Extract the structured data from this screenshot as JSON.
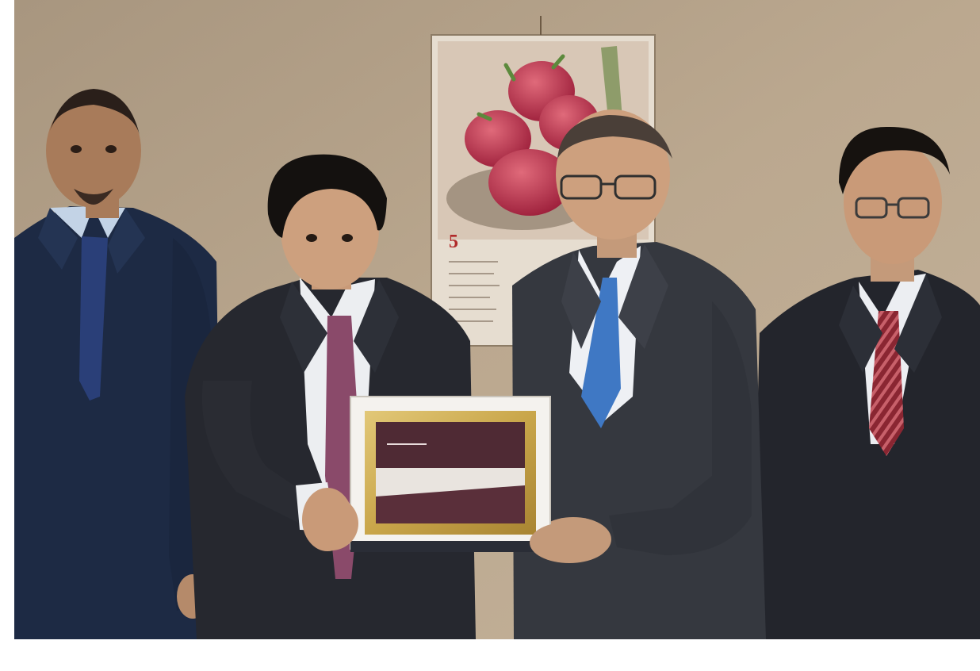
{
  "photo": {
    "calendar_number": "5",
    "colors": {
      "wall": "#b8a48c",
      "suit_navy": "#1d2a44",
      "suit_dark": "#23252c",
      "suit_gray": "#35383f",
      "tie_blue": "#3f78c4",
      "tie_purple": "#8a4a6a",
      "tie_striped": "#9a2f3a",
      "frame_gold": "#c9a64a",
      "skin": "#c99a78"
    }
  }
}
